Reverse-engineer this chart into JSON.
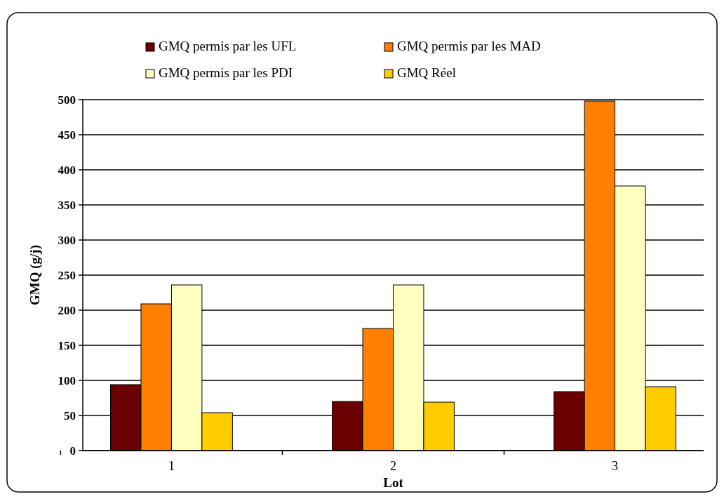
{
  "chart_data": {
    "type": "bar",
    "xlabel": "Lot",
    "ylabel": "GMQ (g/j)",
    "categories": [
      "1",
      "2",
      "3"
    ],
    "series": [
      {
        "name": "GMQ permis par les UFL",
        "color": "#6b0000",
        "values": [
          94,
          70,
          84
        ]
      },
      {
        "name": "GMQ permis par les MAD",
        "color": "#ff8000",
        "values": [
          209,
          174,
          498
        ]
      },
      {
        "name": "GMQ permis par les PDI",
        "color": "#ffffc0",
        "values": [
          236,
          236,
          377
        ]
      },
      {
        "name": "GMQ Réel",
        "color": "#ffcc00",
        "values": [
          54,
          69,
          91
        ]
      }
    ],
    "ylim": [
      0,
      500
    ],
    "yticks": [
      0,
      50,
      100,
      150,
      200,
      250,
      300,
      350,
      400,
      450,
      500
    ],
    "grid": "y",
    "legend": "top"
  }
}
